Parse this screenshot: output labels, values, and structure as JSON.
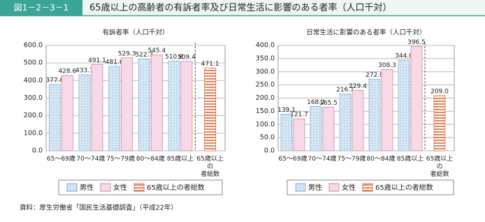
{
  "header": {
    "label": "図1－2－3－1",
    "title": "65歳以上の高齢者の有訴者率及び日常生活に影響のある者率（人口千対）"
  },
  "source": "資料：厚生労働省「国民生活基礎調査」（平成22年）",
  "chart_data": [
    {
      "type": "bar",
      "title": "有訴者率（人口千対）",
      "categories": [
        "65～69歳",
        "70～74歳",
        "75～79歳",
        "80～84歳",
        "85歳以上",
        "65歳以上の\n者総数"
      ],
      "series": [
        {
          "name": "男性",
          "color": "#d6e8f6",
          "values": [
            377.8,
            433.7,
            481.6,
            522.7,
            510.8,
            null
          ],
          "value_labels": [
            "377.8",
            "433.7",
            "481.6",
            "522.7",
            "510.8",
            null
          ]
        },
        {
          "name": "女性",
          "color": "#f7d9e8",
          "values": [
            428.6,
            491.1,
            529.3,
            545.4,
            509.4,
            null
          ],
          "value_labels": [
            "428.6",
            "491.1",
            "529.3",
            "545.4",
            "509.4",
            null
          ]
        },
        {
          "name": "65歳以上の者総数",
          "color": "#e8845c",
          "values": [
            null,
            null,
            null,
            null,
            null,
            471.1
          ],
          "value_labels": [
            null,
            null,
            null,
            null,
            null,
            "471.1"
          ]
        }
      ],
      "ylim": [
        0,
        600
      ],
      "yticks": [
        {
          "value": 0,
          "label": "0.0"
        },
        {
          "value": 100,
          "label": "100.0"
        },
        {
          "value": 200,
          "label": "200.0"
        },
        {
          "value": 300,
          "label": "300.0"
        },
        {
          "value": 400,
          "label": "400.0"
        },
        {
          "value": 500,
          "label": "500.0"
        },
        {
          "value": 600,
          "label": "600.0"
        }
      ],
      "grid": true
    },
    {
      "type": "bar",
      "title": "日常生活に影響のある者率（人口千対）",
      "categories": [
        "65～69歳",
        "70～74歳",
        "75～79歳",
        "80～84歳",
        "85歳以上",
        "65歳以上の\n者総数"
      ],
      "series": [
        {
          "name": "男性",
          "color": "#d6e8f6",
          "values": [
            139.1,
            168.2,
            216.1,
            272.0,
            344.0,
            null
          ],
          "value_labels": [
            "139.1",
            "168.2",
            "216.1",
            "272.0",
            "344.0",
            null
          ]
        },
        {
          "name": "女性",
          "color": "#f7d9e8",
          "values": [
            121.7,
            165.5,
            229.4,
            308.3,
            396.5,
            null
          ],
          "value_labels": [
            "121.7",
            "165.5",
            "229.4",
            "308.3",
            "396.5",
            null
          ]
        },
        {
          "name": "65歳以上の者総数",
          "color": "#e8845c",
          "values": [
            null,
            null,
            null,
            null,
            null,
            209.0
          ],
          "value_labels": [
            null,
            null,
            null,
            null,
            null,
            "209.0"
          ]
        }
      ],
      "ylim": [
        0,
        400
      ],
      "yticks": [
        {
          "value": 0,
          "label": "0.0"
        },
        {
          "value": 50,
          "label": "50.0"
        },
        {
          "value": 100,
          "label": "100.0"
        },
        {
          "value": 150,
          "label": "150.0"
        },
        {
          "value": 200,
          "label": "200.0"
        },
        {
          "value": 250,
          "label": "250.0"
        },
        {
          "value": 300,
          "label": "300.0"
        },
        {
          "value": 350,
          "label": "350.0"
        },
        {
          "value": 400,
          "label": "400.0"
        }
      ],
      "grid": true
    }
  ]
}
